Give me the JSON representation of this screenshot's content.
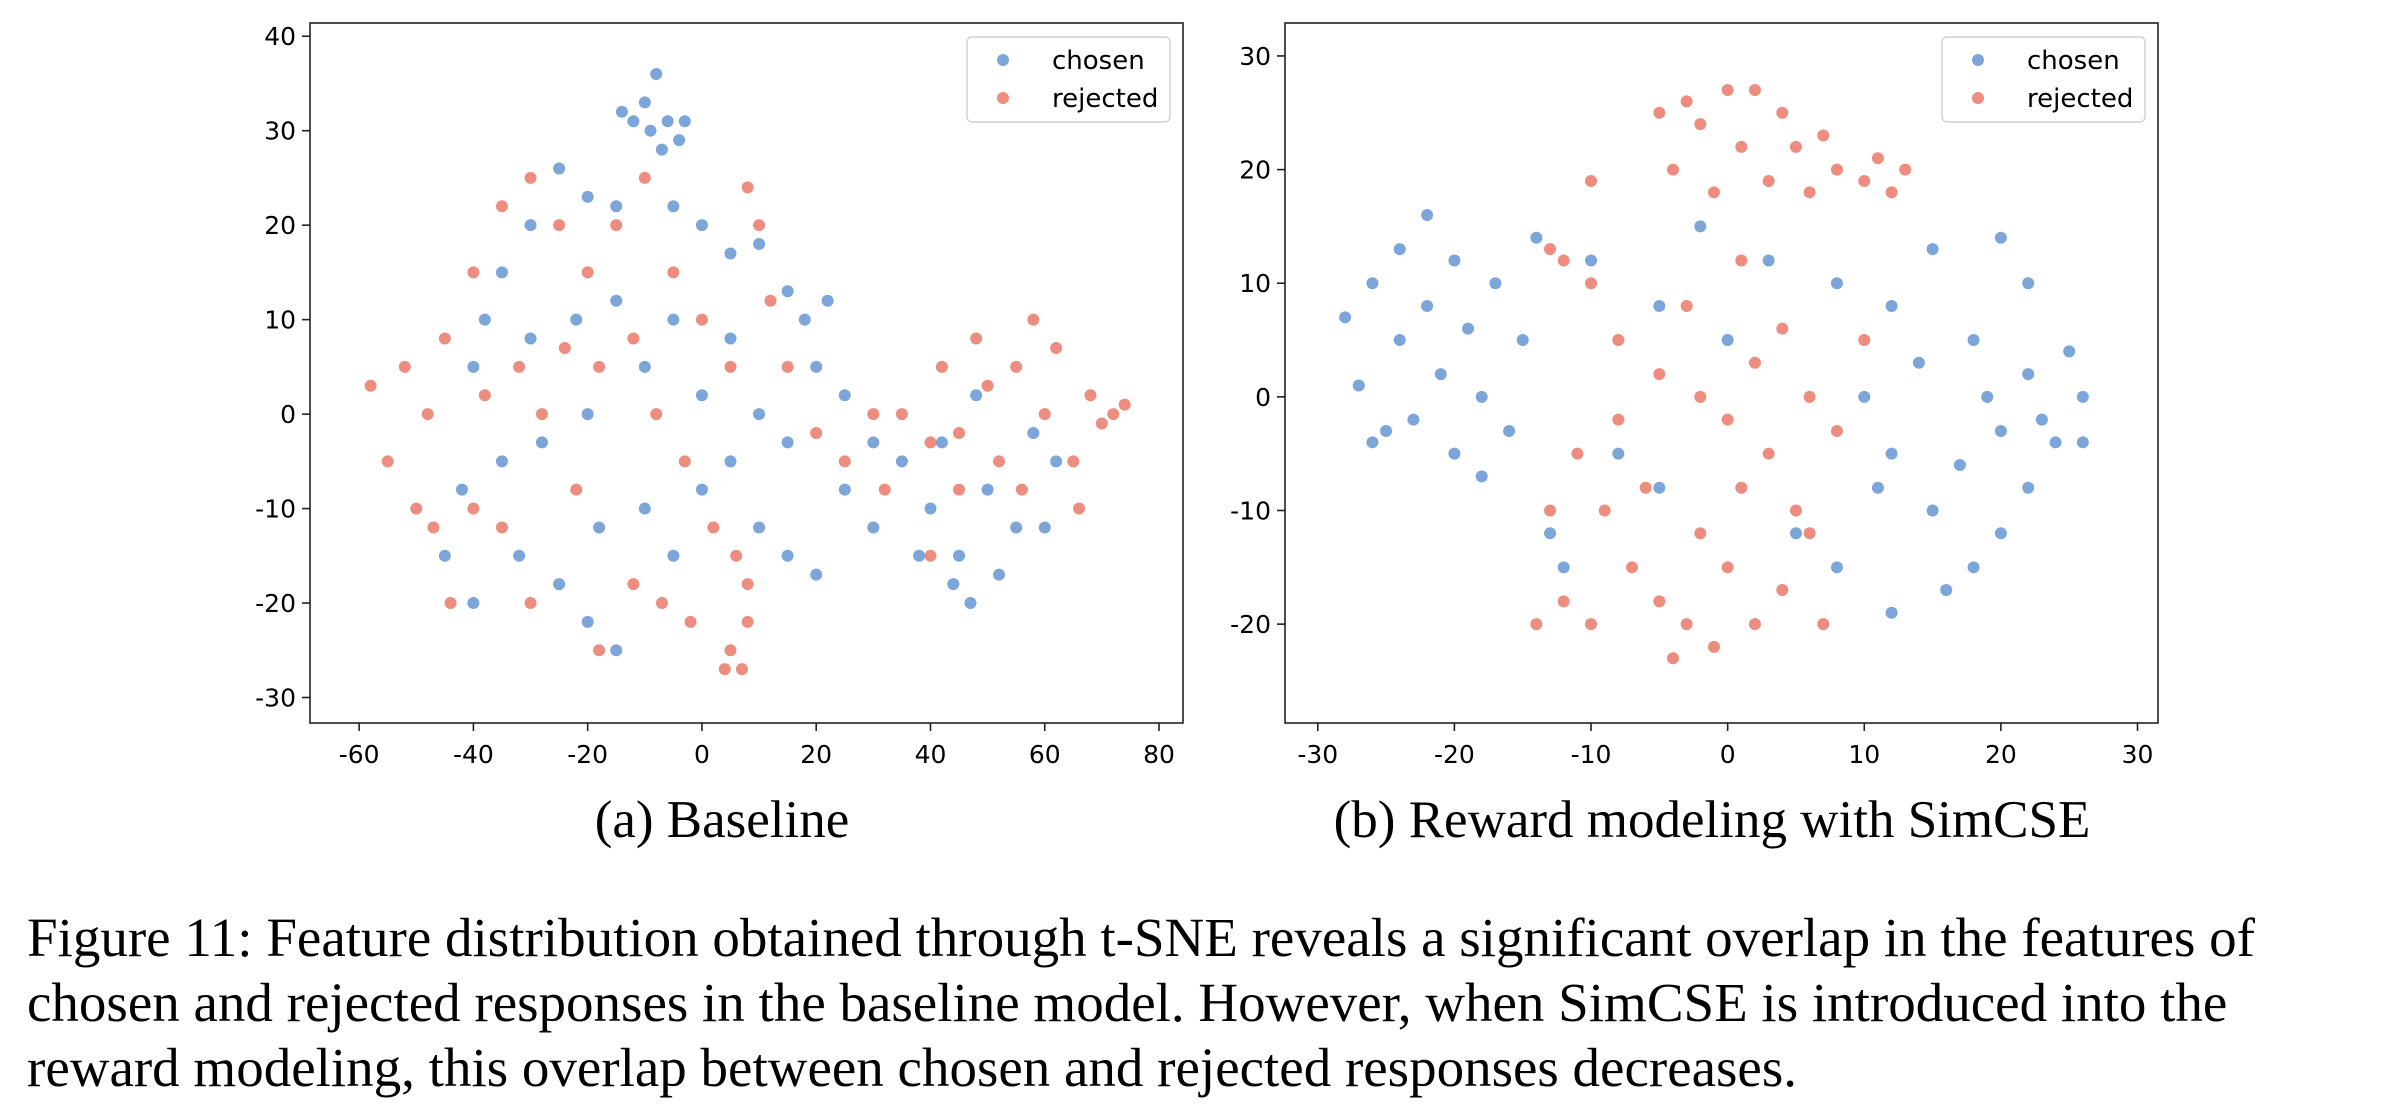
{
  "colors": {
    "chosen": "#5b8fcf",
    "rejected": "#e8705f"
  },
  "chart_data": [
    {
      "type": "scatter",
      "subcaption": "(a) Baseline",
      "xlim": [
        -68.6,
        84.2
      ],
      "ylim": [
        -32.7,
        41.4
      ],
      "xticks": [
        "-60",
        "-40",
        "-20",
        "0",
        "20",
        "40",
        "60",
        "80"
      ],
      "yticks": [
        "-30",
        "-20",
        "-10",
        "0",
        "10",
        "20",
        "30",
        "40"
      ],
      "grid": false,
      "legend": "top-right",
      "series": [
        {
          "name": "chosen",
          "color": "#5b8fcf",
          "points": [
            [
              -8,
              36
            ],
            [
              -10,
              33
            ],
            [
              -6,
              31
            ],
            [
              -9,
              30
            ],
            [
              -4,
              29
            ],
            [
              -12,
              31
            ],
            [
              -7,
              28
            ],
            [
              -3,
              31
            ],
            [
              -14,
              32
            ],
            [
              -25,
              26
            ],
            [
              -20,
              23
            ],
            [
              -15,
              22
            ],
            [
              -5,
              22
            ],
            [
              0,
              20
            ],
            [
              5,
              17
            ],
            [
              10,
              18
            ],
            [
              15,
              13
            ],
            [
              18,
              10
            ],
            [
              22,
              12
            ],
            [
              20,
              5
            ],
            [
              25,
              2
            ],
            [
              -30,
              20
            ],
            [
              -35,
              15
            ],
            [
              -38,
              10
            ],
            [
              -40,
              5
            ],
            [
              -30,
              8
            ],
            [
              -22,
              10
            ],
            [
              -15,
              12
            ],
            [
              -10,
              5
            ],
            [
              -5,
              10
            ],
            [
              0,
              2
            ],
            [
              5,
              8
            ],
            [
              10,
              0
            ],
            [
              15,
              -3
            ],
            [
              -20,
              0
            ],
            [
              -28,
              -3
            ],
            [
              -35,
              -5
            ],
            [
              -42,
              -8
            ],
            [
              -45,
              -15
            ],
            [
              -40,
              -20
            ],
            [
              -32,
              -15
            ],
            [
              -25,
              -18
            ],
            [
              -20,
              -22
            ],
            [
              -15,
              -25
            ],
            [
              -18,
              -12
            ],
            [
              -10,
              -10
            ],
            [
              -5,
              -15
            ],
            [
              0,
              -8
            ],
            [
              5,
              -5
            ],
            [
              10,
              -12
            ],
            [
              15,
              -15
            ],
            [
              20,
              -17
            ],
            [
              25,
              -8
            ],
            [
              30,
              -3
            ],
            [
              35,
              -5
            ],
            [
              40,
              -10
            ],
            [
              45,
              -15
            ],
            [
              50,
              -8
            ],
            [
              55,
              -12
            ],
            [
              60,
              -12
            ],
            [
              62,
              -5
            ],
            [
              52,
              -17
            ],
            [
              42,
              -3
            ],
            [
              48,
              2
            ],
            [
              58,
              -2
            ],
            [
              38,
              -15
            ],
            [
              47,
              -20
            ],
            [
              30,
              -12
            ],
            [
              44,
              -18
            ]
          ]
        },
        {
          "name": "rejected",
          "color": "#e8705f",
          "points": [
            [
              -58,
              3
            ],
            [
              -55,
              -5
            ],
            [
              -52,
              5
            ],
            [
              -50,
              -10
            ],
            [
              -48,
              0
            ],
            [
              -47,
              -12
            ],
            [
              -45,
              8
            ],
            [
              -44,
              -20
            ],
            [
              -40,
              15
            ],
            [
              -35,
              22
            ],
            [
              -30,
              25
            ],
            [
              -25,
              20
            ],
            [
              -20,
              15
            ],
            [
              -15,
              20
            ],
            [
              -10,
              25
            ],
            [
              -5,
              15
            ],
            [
              0,
              10
            ],
            [
              5,
              5
            ],
            [
              8,
              24
            ],
            [
              10,
              20
            ],
            [
              12,
              12
            ],
            [
              15,
              5
            ],
            [
              20,
              -2
            ],
            [
              -38,
              2
            ],
            [
              -32,
              5
            ],
            [
              -28,
              0
            ],
            [
              -24,
              7
            ],
            [
              -18,
              5
            ],
            [
              -12,
              8
            ],
            [
              -8,
              0
            ],
            [
              -3,
              -5
            ],
            [
              2,
              -12
            ],
            [
              6,
              -15
            ],
            [
              8,
              -18
            ],
            [
              -35,
              -12
            ],
            [
              -30,
              -20
            ],
            [
              -22,
              -8
            ],
            [
              -18,
              -25
            ],
            [
              -12,
              -18
            ],
            [
              -7,
              -20
            ],
            [
              -2,
              -22
            ],
            [
              -40,
              -10
            ],
            [
              25,
              -5
            ],
            [
              30,
              0
            ],
            [
              32,
              -8
            ],
            [
              5,
              -25
            ],
            [
              7,
              -27
            ],
            [
              4,
              -27
            ],
            [
              8,
              -22
            ],
            [
              35,
              0
            ],
            [
              40,
              -3
            ],
            [
              42,
              5
            ],
            [
              45,
              -2
            ],
            [
              48,
              8
            ],
            [
              50,
              3
            ],
            [
              52,
              -5
            ],
            [
              55,
              5
            ],
            [
              58,
              10
            ],
            [
              60,
              0
            ],
            [
              62,
              7
            ],
            [
              65,
              -5
            ],
            [
              68,
              2
            ],
            [
              70,
              -1
            ],
            [
              72,
              0
            ],
            [
              74,
              1
            ],
            [
              66,
              -10
            ],
            [
              56,
              -8
            ],
            [
              45,
              -8
            ],
            [
              40,
              -15
            ]
          ]
        }
      ]
    },
    {
      "type": "scatter",
      "subcaption": "(b) Reward modeling with SimCSE",
      "xlim": [
        -32.4,
        31.5
      ],
      "ylim": [
        -28.7,
        32.9
      ],
      "xticks": [
        "-30",
        "-20",
        "-10",
        "0",
        "10",
        "20",
        "30"
      ],
      "yticks": [
        "-20",
        "-10",
        "0",
        "10",
        "20",
        "30"
      ],
      "grid": false,
      "legend": "top-right",
      "series": [
        {
          "name": "chosen",
          "color": "#5b8fcf",
          "points": [
            [
              -28,
              7
            ],
            [
              -27,
              1
            ],
            [
              -26,
              10
            ],
            [
              -25,
              -3
            ],
            [
              -24,
              13
            ],
            [
              -24,
              5
            ],
            [
              -23,
              -2
            ],
            [
              -22,
              16
            ],
            [
              -22,
              8
            ],
            [
              -21,
              2
            ],
            [
              -20,
              -5
            ],
            [
              -20,
              12
            ],
            [
              -19,
              6
            ],
            [
              -18,
              0
            ],
            [
              -17,
              10
            ],
            [
              -16,
              -3
            ],
            [
              -15,
              5
            ],
            [
              -14,
              14
            ],
            [
              -18,
              -7
            ],
            [
              -26,
              -4
            ],
            [
              -10,
              12
            ],
            [
              -5,
              8
            ],
            [
              -2,
              15
            ],
            [
              3,
              12
            ],
            [
              8,
              10
            ],
            [
              12,
              8
            ],
            [
              15,
              13
            ],
            [
              20,
              14
            ],
            [
              22,
              10
            ],
            [
              25,
              4
            ],
            [
              26,
              0
            ],
            [
              24,
              -4
            ],
            [
              22,
              -8
            ],
            [
              20,
              -12
            ],
            [
              18,
              -15
            ],
            [
              15,
              -10
            ],
            [
              12,
              -5
            ],
            [
              10,
              0
            ],
            [
              14,
              3
            ],
            [
              18,
              5
            ],
            [
              20,
              -3
            ],
            [
              16,
              -17
            ],
            [
              12,
              -19
            ],
            [
              8,
              -15
            ],
            [
              5,
              -12
            ],
            [
              23,
              -2
            ],
            [
              19,
              0
            ],
            [
              17,
              -6
            ],
            [
              26,
              -4
            ],
            [
              22,
              2
            ],
            [
              -5,
              -8
            ],
            [
              0,
              5
            ],
            [
              -8,
              -5
            ],
            [
              -12,
              -15
            ],
            [
              -13,
              -12
            ],
            [
              11,
              -8
            ]
          ]
        },
        {
          "name": "rejected",
          "color": "#e8705f",
          "points": [
            [
              -3,
              26
            ],
            [
              0,
              27
            ],
            [
              2,
              27
            ],
            [
              4,
              25
            ],
            [
              -2,
              24
            ],
            [
              1,
              22
            ],
            [
              5,
              22
            ],
            [
              -4,
              20
            ],
            [
              3,
              19
            ],
            [
              6,
              18
            ],
            [
              8,
              20
            ],
            [
              10,
              19
            ],
            [
              12,
              18
            ],
            [
              13,
              20
            ],
            [
              11,
              21
            ],
            [
              7,
              23
            ],
            [
              -1,
              18
            ],
            [
              -5,
              25
            ],
            [
              -10,
              10
            ],
            [
              -8,
              5
            ],
            [
              -5,
              2
            ],
            [
              -2,
              0
            ],
            [
              0,
              -2
            ],
            [
              2,
              3
            ],
            [
              4,
              6
            ],
            [
              6,
              0
            ],
            [
              8,
              -3
            ],
            [
              10,
              5
            ],
            [
              -12,
              12
            ],
            [
              -11,
              -5
            ],
            [
              -9,
              -10
            ],
            [
              -7,
              -15
            ],
            [
              -5,
              -18
            ],
            [
              -3,
              -20
            ],
            [
              -1,
              -22
            ],
            [
              2,
              -20
            ],
            [
              4,
              -17
            ],
            [
              6,
              -12
            ],
            [
              -13,
              -10
            ],
            [
              -14,
              -20
            ],
            [
              -10,
              -20
            ],
            [
              -12,
              -18
            ],
            [
              -6,
              -8
            ],
            [
              -2,
              -12
            ],
            [
              1,
              -8
            ],
            [
              3,
              -5
            ],
            [
              5,
              -10
            ],
            [
              7,
              -20
            ],
            [
              -4,
              -23
            ],
            [
              0,
              -15
            ],
            [
              -8,
              -2
            ],
            [
              -3,
              8
            ],
            [
              1,
              12
            ],
            [
              -10,
              19
            ],
            [
              -13,
              13
            ]
          ]
        }
      ]
    }
  ],
  "caption": {
    "lines": [
      "Figure 11: Feature distribution obtained through t-SNE reveals a significant overlap in the features of",
      "chosen and rejected responses in the baseline model. However, when SimCSE is introduced into the",
      "reward modeling, this overlap between chosen and rejected responses decreases."
    ]
  }
}
